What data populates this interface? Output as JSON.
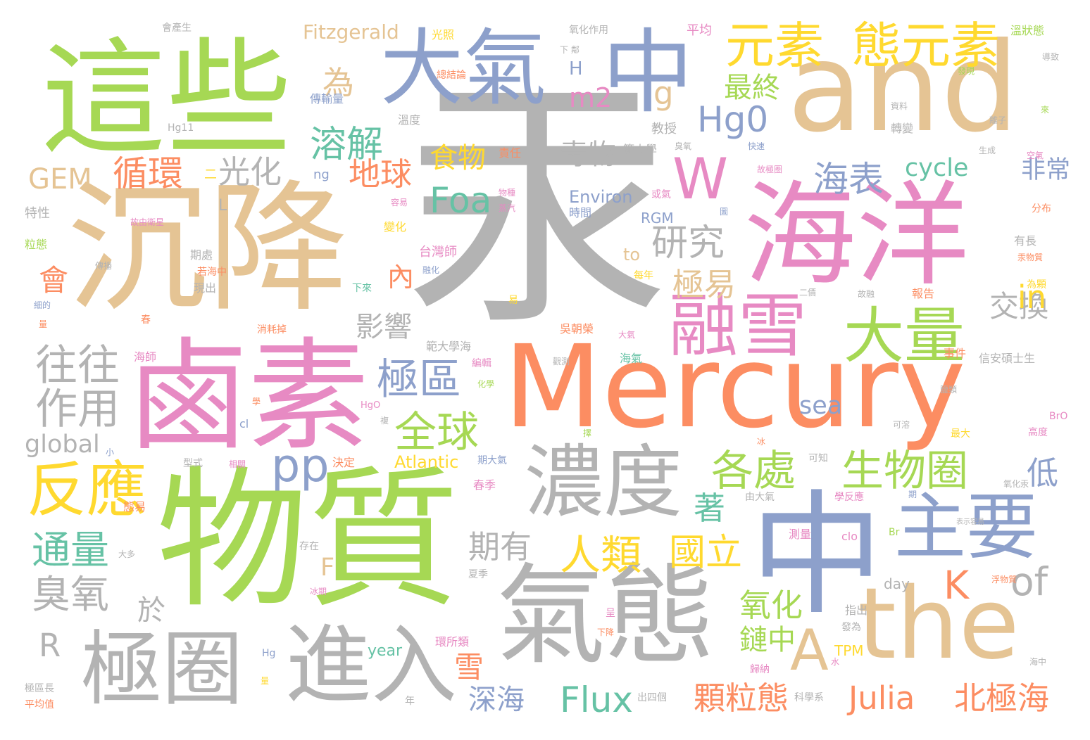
{
  "palette": {
    "gray": "#b3b3b3",
    "green": "#a6d854",
    "tan": "#e5c494",
    "pink": "#e78ac3",
    "blue": "#8da0cb",
    "orange": "#fc8d62",
    "yellow": "#ffd92f",
    "teal": "#66c2a5",
    "background": "#ffffff"
  },
  "words": {
    "hg": "汞",
    "mercury": "Mercury",
    "wuzhi": "物質",
    "lusu": "鹵素",
    "chenjiang": "沉降",
    "zhexie": "這些",
    "and": "and",
    "haiyang": "海洋",
    "zhong1": "中",
    "zhong2": "中",
    "daqi": "大氣",
    "qitai": "氣態",
    "the": "the",
    "nongdu": "濃度",
    "jinru": "進入",
    "jiquan": "極圈",
    "zhuyao": "主要",
    "rongxue": "融雪",
    "daliang": "大量",
    "yuansu": "元素",
    "taiyuansu": "態元素",
    "fanying": "反應",
    "shengwuquan": "生物圈",
    "gechu": "各處",
    "quanqiu": "全球",
    "jiqu": "極區",
    "wangwang": "往往",
    "zuoyong": "作用",
    "chouyang": "臭氧",
    "xunhuan": "循環",
    "guanghua": "光化",
    "rongjie": "溶解",
    "hg0": "Hg0",
    "W": "W",
    "A": "A",
    "pp": "pp",
    "renlei": "人類",
    "guoli": "國立",
    "yanjiu": "研究",
    "jiyi": "極易",
    "haibiao": "海表",
    "feichang": "非常",
    "jiaohuan": "交換",
    "tongliang": "通量",
    "julia": "Julia",
    "beijihai": "北極海",
    "flux": "Flux",
    "keliitai": "顆粒態",
    "shenhai": "深海",
    "foa": "Foa",
    "qiqiu": "地球",
    "shiwu": "食物",
    "duwu": "毒物",
    "m2": "m2",
    "g": "g",
    "wei": "為",
    "zuizhong": "最終",
    "of": "of",
    "in": "in",
    "K": "K",
    "yanghua": "氧化",
    "lianzhong": "鏈中",
    "zhe": "著",
    "di": "低",
    "yingxiang": "影響",
    "qiyou": "期有",
    "nei": "內",
    "hui": "會",
    "yu": "於",
    "xue": "雪",
    "gem": "GEM",
    "global": "global",
    "R": "R",
    "F": "F",
    "cycle": "cycle",
    "sea": "sea",
    "fitzgerald": "Fitzgerald",
    "atlantic": "Atlantic",
    "environ": "Environ",
    "rgm": "RGM",
    "H": "H",
    "L": "L",
    "to": "to",
    "tpm": "TPM",
    "day": "day",
    "year": "year",
    "ng": "ng",
    "hg11": "Hg11",
    "hgsmall": "Hg",
    "hgo": "HgO",
    "bro": "BrO",
    "br": "Br",
    "clo": "clo",
    "cl": "cl",
    "huichansheng": "會產生",
    "guangzhao": "光照",
    "yanghuazuoyong": "氧化作用",
    "pingjun": "平均",
    "wenzhuangtai": "溫狀態",
    "daozhi": "導致",
    "faxian": "發現",
    "xiaju": "下 鄰",
    "zongjielun": "總結論",
    "chuanshuliang": "傳輸量",
    "wendu": "溫度",
    "jiaoshou": "教授",
    "zeren": "責任",
    "fanweidaxue": "範大學",
    "chouqi": "臭氧",
    "kuaisu": "快速",
    "ziliao": "資料",
    "zhuanbian": "轉變",
    "lizi": "離子",
    "lai": "來",
    "shengcheng": "生成",
    "kongqi": "空氣",
    "gujiquan": "故極圈",
    "huoqi": "或氣",
    "wuzhong": "物種",
    "zhengqi": "蒸汽",
    "rongyi": "容易",
    "bianhua": "變化",
    "shijian": "時間",
    "tu": "圖",
    "fenbu": "分布",
    "texing": "特性",
    "guyouweixing": "故由衛星",
    "lizhuangtai": "粒態",
    "taiwanshi": "台灣師",
    "ronghua": "融化",
    "youchang": "有長",
    "hanwuzhi": "汞物質",
    "chuanbo": "傳播",
    "qichu": "期處",
    "ruohaizhong": "若海中",
    "xianchu": "現出",
    "meinian": "每年",
    "erjia": "二價",
    "guzhan": "故融",
    "baogao": "報告",
    "weike": "為顆",
    "xialai": "下來",
    "xide": "細的",
    "liang": "量",
    "yi": "易",
    "chun": "春",
    "xiaohao": "消耗掉",
    "fanweidaxuehai": "範大學海",
    "wuchaorong": "吳朝榮",
    "daqismall": "大氣",
    "shijianer": "事件",
    "haishi": "海師",
    "bianji": "編輯",
    "haiqi": "海氣",
    "guance": "觀測",
    "xinanshuoshi": "信安碩士生",
    "huaxue": "化學",
    "yanlei": "鹽類",
    "xue2": "學",
    "fu": "複",
    "kerong": "可溶",
    "zuida": "最大",
    "gaodu": "高度",
    "xiao": "小",
    "ze": "擇",
    "bing": "冰",
    "xingshi": "型式",
    "xiangguan": "相關",
    "jueding": "決定",
    "qidaqi": "期大氣",
    "kezhi": "可知",
    "xuefanying": "學反應",
    "yanghuahg": "氧化汞",
    "qi": "期",
    "chunji": "春季",
    "youdaqi": "由大氣",
    "taiyi": "態易",
    "cunzai": "存在",
    "celiang": "測量",
    "biaoxian": "表示容易",
    "daduo": "大多",
    "xiaji": "夏季",
    "bingqi": "冰期",
    "cheng": "呈",
    "xiajiang": "下降",
    "zhichu": "指出",
    "fuwuzhi": "浮物質",
    "fawei": "發為",
    "huansuolei": "環所類",
    "shui": "水",
    "guina": "歸納",
    "haizhong": "海中",
    "jiquchang": "極區長",
    "liang2": "量",
    "pingjunzhi": "平均值",
    "nian": "年",
    "chusige": "出四個",
    "kexuexi": "科學系",
    "dash": "二"
  }
}
